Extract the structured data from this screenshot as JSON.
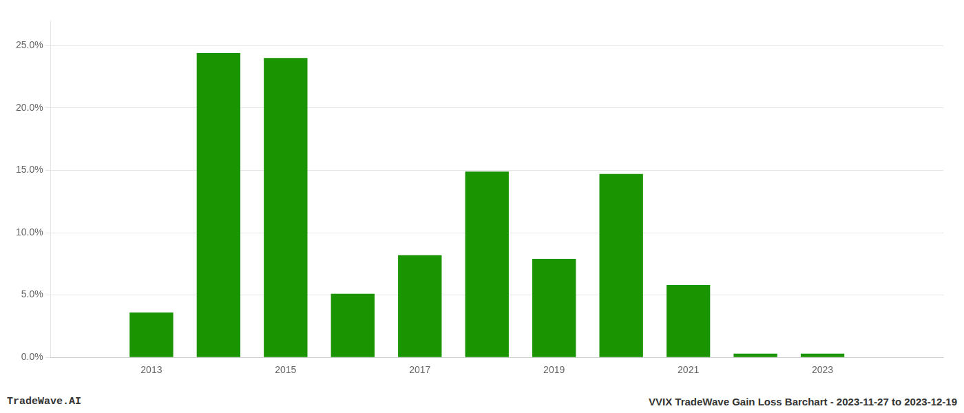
{
  "chart_data": {
    "type": "bar",
    "x": [
      2013,
      2014,
      2015,
      2016,
      2017,
      2018,
      2019,
      2020,
      2021,
      2022,
      2023
    ],
    "values": [
      0.036,
      0.244,
      0.24,
      0.051,
      0.082,
      0.149,
      0.079,
      0.147,
      0.058,
      0.003,
      0.003
    ],
    "color": "#1a9400",
    "xlim": [
      2011.5,
      2024.8
    ],
    "xticks": [
      2013,
      2015,
      2017,
      2019,
      2021,
      2023
    ],
    "ylim": [
      0,
      0.27
    ],
    "yticks": [
      {
        "value": 0,
        "label": "0.0%"
      },
      {
        "value": 0.05,
        "label": "5.0%"
      },
      {
        "value": 0.1,
        "label": "10.0%"
      },
      {
        "value": 0.15,
        "label": "15.0%"
      },
      {
        "value": 0.2,
        "label": "20.0%"
      },
      {
        "value": 0.25,
        "label": "25.0%"
      }
    ],
    "grid": true,
    "annotations": [
      "TradeWave.AI",
      "VVIX TradeWave Gain Loss Barchart - 2023-11-27 to 2023-12-19"
    ]
  }
}
